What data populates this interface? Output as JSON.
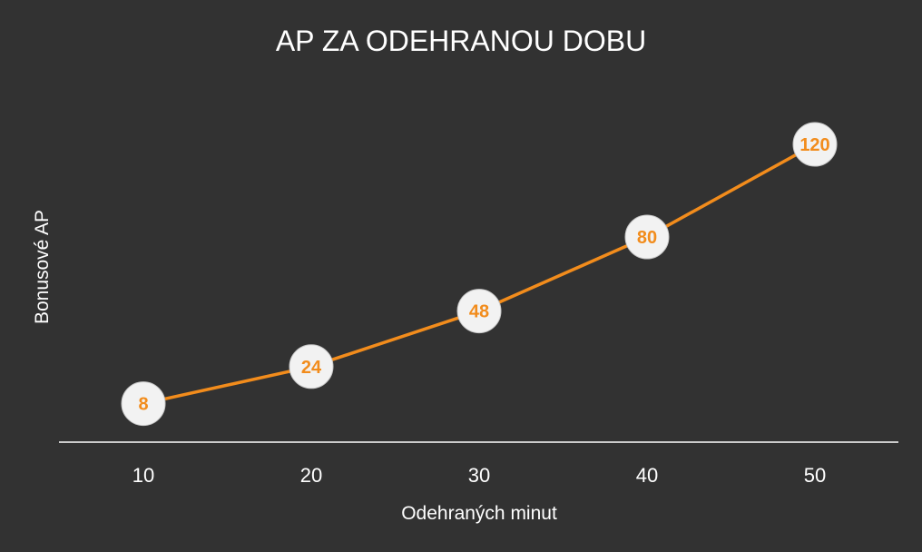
{
  "chart_data": {
    "type": "line",
    "title": "AP ZA ODEHRANOU DOBU",
    "xlabel": "Odehraných minut",
    "ylabel": "Bonusové AP",
    "categories": [
      "10",
      "20",
      "30",
      "40",
      "50"
    ],
    "series": [
      {
        "values": [
          8,
          24,
          48,
          80,
          120
        ]
      }
    ],
    "data_labels": [
      "8",
      "24",
      "48",
      "80",
      "120"
    ],
    "ylim": [
      0,
      130
    ],
    "grid": false,
    "legend": "none",
    "colors": {
      "background": "#323232",
      "line": "#f28c1c",
      "marker_fill": "#f2f2f2",
      "label_text": "#f28c1c",
      "axis": "#ffffff",
      "text": "#ffffff"
    }
  }
}
